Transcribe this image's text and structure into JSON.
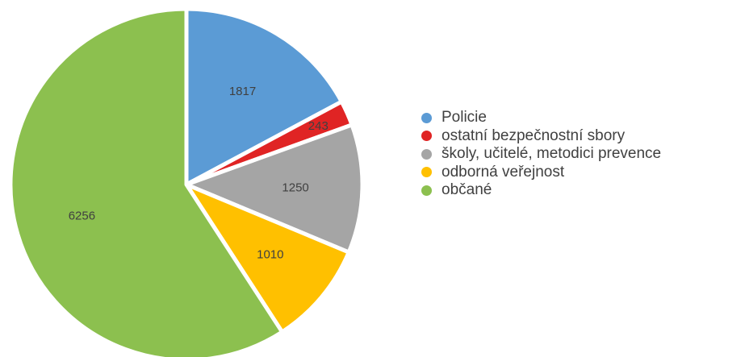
{
  "chart_data": {
    "type": "pie",
    "title": "",
    "legend_position": "right",
    "slices": [
      {
        "label": "Policie",
        "value": 1817,
        "color": "#5b9bd5"
      },
      {
        "label": "ostatní bezpečnostní sbory",
        "value": 243,
        "color": "#e02424"
      },
      {
        "label": "školy, učitelé, metodici prevence",
        "value": 1250,
        "color": "#a5a5a5"
      },
      {
        "label": "odborná veřejnost",
        "value": 1010,
        "color": "#ffc000"
      },
      {
        "label": "občané",
        "value": 6256,
        "color": "#8cc04f"
      }
    ]
  }
}
